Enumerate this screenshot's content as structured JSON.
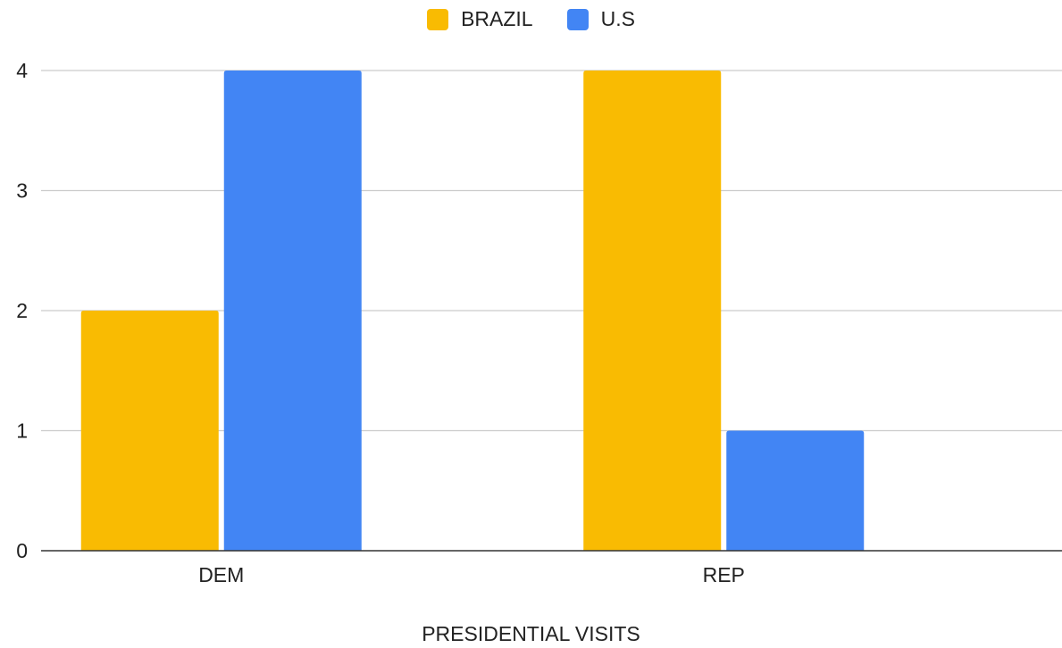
{
  "chart_data": {
    "type": "bar",
    "categories": [
      "DEM",
      "REP"
    ],
    "series": [
      {
        "name": "BRAZIL",
        "values": [
          2,
          4
        ],
        "color": "#F9BB02"
      },
      {
        "name": "U.S",
        "values": [
          4,
          1
        ],
        "color": "#4285F4"
      }
    ],
    "xlabel": "PRESIDENTIAL VISITS",
    "ylabel": "",
    "ylim": [
      0,
      4
    ],
    "yticks": [
      0,
      1,
      2,
      3,
      4
    ],
    "grid": true,
    "legend_position": "top-center"
  }
}
